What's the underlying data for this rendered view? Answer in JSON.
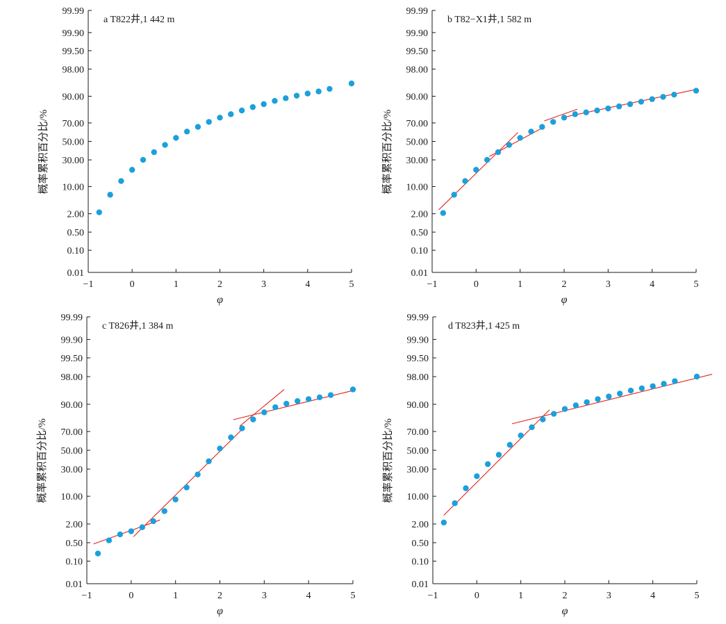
{
  "chart_data": [
    {
      "id": "a",
      "type": "scatter",
      "title": "a  T822井,1 442 m",
      "xlabel": "φ",
      "ylabel": "概率累积百分比/%",
      "xlim": [
        -1,
        5
      ],
      "x_ticks": [
        -1,
        0,
        1,
        2,
        3,
        4,
        5
      ],
      "x_tick_labels": [
        "−1",
        "0",
        "1",
        "2",
        "3",
        "4",
        "5"
      ],
      "y_ticks": [
        0.01,
        0.1,
        0.5,
        2,
        10,
        30,
        50,
        70,
        90,
        98,
        99.5,
        99.9,
        99.99
      ],
      "y_tick_labels": [
        "0.01",
        "0.10",
        "0.50",
        "2.00",
        "10.00",
        "30.00",
        "50.00",
        "70.00",
        "90.00",
        "98.00",
        "99.50",
        "99.90",
        "99.99"
      ],
      "y_scale": "probability",
      "series": [
        {
          "x": [
            -0.75,
            -0.5,
            -0.25,
            0,
            0.25,
            0.5,
            0.75,
            1,
            1.25,
            1.5,
            1.75,
            2,
            2.25,
            2.5,
            2.75,
            3,
            3.25,
            3.5,
            3.75,
            4,
            4.25,
            4.5,
            5
          ],
          "y": [
            2.2,
            6.5,
            13,
            21,
            30,
            38,
            46,
            54,
            61,
            66,
            71,
            75,
            78,
            81,
            83.5,
            85.5,
            87.5,
            89,
            90.3,
            91.3,
            92.2,
            93.2,
            95
          ]
        }
      ],
      "fit_lines": []
    },
    {
      "id": "b",
      "type": "scatter",
      "title": "b  T82−X1井,1 582 m",
      "xlabel": "φ",
      "ylabel": "概率累积百分比/%",
      "xlim": [
        -1,
        5
      ],
      "x_ticks": [
        -1,
        0,
        1,
        2,
        3,
        4,
        5
      ],
      "x_tick_labels": [
        "−1",
        "0",
        "1",
        "2",
        "3",
        "4",
        "5"
      ],
      "y_ticks": [
        0.01,
        0.1,
        0.5,
        2,
        10,
        30,
        50,
        70,
        90,
        98,
        99.5,
        99.9,
        99.99
      ],
      "y_tick_labels": [
        "0.01",
        "0.10",
        "0.50",
        "2.00",
        "10.00",
        "30.00",
        "50.00",
        "70.00",
        "90.00",
        "98.00",
        "99.50",
        "99.90",
        "99.99"
      ],
      "y_scale": "probability",
      "series": [
        {
          "x": [
            -0.75,
            -0.5,
            -0.25,
            0,
            0.25,
            0.5,
            0.75,
            1,
            1.25,
            1.5,
            1.75,
            2,
            2.25,
            2.5,
            2.75,
            3,
            3.25,
            3.5,
            3.75,
            4,
            4.25,
            4.5,
            5
          ],
          "y": [
            2.1,
            6.5,
            13,
            21,
            30,
            38,
            46,
            54,
            61,
            66,
            71,
            75,
            78,
            79.5,
            81,
            82.5,
            84,
            85.5,
            87,
            88.5,
            89.7,
            90.8,
            92.5
          ]
        }
      ],
      "fit_lines": [
        {
          "x": [
            -0.85,
            0.95
          ],
          "y": [
            2.6,
            60
          ]
        },
        {
          "x": [
            0.3,
            1.55
          ],
          "y": [
            33.5,
            66
          ]
        },
        {
          "x": [
            1.55,
            2.3
          ],
          "y": [
            72,
            82
          ]
        },
        {
          "x": [
            1.95,
            5
          ],
          "y": [
            75,
            93
          ]
        }
      ]
    },
    {
      "id": "c",
      "type": "scatter",
      "title": "c  T826井,1 384 m",
      "xlabel": "φ",
      "ylabel": "概率累积百分比/%",
      "xlim": [
        -1,
        5
      ],
      "x_ticks": [
        -1,
        0,
        1,
        2,
        3,
        4,
        5
      ],
      "x_tick_labels": [
        "−1",
        "0",
        "1",
        "2",
        "3",
        "4",
        "5"
      ],
      "y_ticks": [
        0.01,
        0.1,
        0.5,
        2,
        10,
        30,
        50,
        70,
        90,
        98,
        99.5,
        99.9,
        99.99
      ],
      "y_tick_labels": [
        "0.01",
        "0.10",
        "0.50",
        "2.00",
        "10.00",
        "30.00",
        "50.00",
        "70.00",
        "90.00",
        "98.00",
        "99.50",
        "99.90",
        "99.99"
      ],
      "y_scale": "probability",
      "series": [
        {
          "x": [
            -0.75,
            -0.5,
            -0.25,
            0,
            0.25,
            0.5,
            0.75,
            1,
            1.25,
            1.5,
            1.75,
            2,
            2.25,
            2.5,
            2.75,
            3,
            3.25,
            3.5,
            3.75,
            4,
            4.25,
            4.5,
            5
          ],
          "y": [
            0.2,
            0.6,
            0.95,
            1.2,
            1.6,
            2.4,
            4.5,
            8.5,
            15,
            25,
            38,
            52,
            64,
            73,
            80.5,
            85.5,
            88.5,
            90.3,
            91.5,
            92.3,
            93,
            93.8,
            95.5
          ]
        }
      ],
      "fit_lines": [
        {
          "x": [
            -0.85,
            0.65
          ],
          "y": [
            0.45,
            2.6
          ]
        },
        {
          "x": [
            0.05,
            2.5
          ],
          "y": [
            0.8,
            72
          ]
        },
        {
          "x": [
            2.45,
            3.45
          ],
          "y": [
            75,
            95.5
          ]
        },
        {
          "x": [
            2.3,
            5
          ],
          "y": [
            80.3,
            95.2
          ]
        }
      ]
    },
    {
      "id": "d",
      "type": "scatter",
      "title": "d  T823井,1 425 m",
      "xlabel": "φ",
      "ylabel": "概率累积百分比/%",
      "xlim": [
        -1,
        5
      ],
      "x_ticks": [
        -1,
        0,
        1,
        2,
        3,
        4,
        5
      ],
      "x_tick_labels": [
        "−1",
        "0",
        "1",
        "2",
        "3",
        "4",
        "5"
      ],
      "y_ticks": [
        0.01,
        0.1,
        0.5,
        2,
        10,
        30,
        50,
        70,
        90,
        98,
        99.5,
        99.9,
        99.99
      ],
      "y_tick_labels": [
        "0.01",
        "0.10",
        "0.50",
        "2.00",
        "10.00",
        "30.00",
        "50.00",
        "70.00",
        "90.00",
        "98.00",
        "99.50",
        "99.90",
        "99.99"
      ],
      "y_scale": "probability",
      "series": [
        {
          "x": [
            -0.75,
            -0.5,
            -0.25,
            0,
            0.25,
            0.5,
            0.75,
            1,
            1.25,
            1.5,
            1.75,
            2,
            2.25,
            2.5,
            2.75,
            3,
            3.25,
            3.5,
            3.75,
            4,
            4.25,
            4.5,
            5
          ],
          "y": [
            2.2,
            7,
            14.5,
            23.5,
            35,
            45,
            56,
            66,
            74,
            80.5,
            84.5,
            87.5,
            89.5,
            91,
            92.3,
            93.3,
            94.3,
            95.2,
            95.8,
            96.3,
            96.8,
            97.3,
            98
          ]
        }
      ],
      "fit_lines": [
        {
          "x": [
            -0.75,
            1.65
          ],
          "y": [
            3.5,
            87
          ]
        },
        {
          "x": [
            0.8,
            5.35
          ],
          "y": [
            77,
            98.3
          ]
        }
      ]
    }
  ]
}
